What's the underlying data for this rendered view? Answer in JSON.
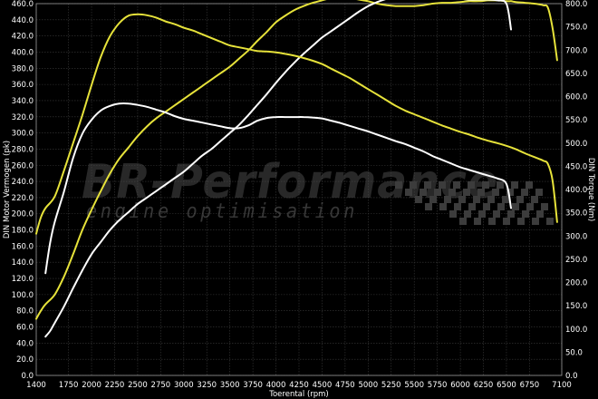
{
  "chart_data": {
    "type": "line",
    "title": "",
    "xlabel": "Toerental (rpm)",
    "ylabel_left": "DIN Motor Vermogen (pk)",
    "ylabel_right": "DIN Torque (Nm)",
    "xlim": [
      1400,
      7100
    ],
    "ylim_left": [
      0,
      460
    ],
    "ylim_right": [
      0,
      800
    ],
    "x_ticks": [
      1400,
      1750,
      2000,
      2250,
      2500,
      2750,
      3000,
      3250,
      3500,
      3750,
      4000,
      4250,
      4500,
      4750,
      5000,
      5250,
      5500,
      5750,
      6000,
      6250,
      6500,
      6750,
      7100
    ],
    "y_ticks_left": [
      "0.0",
      "20.0",
      "40.0",
      "60.0",
      "80.0",
      "100.0",
      "120.0",
      "140.0",
      "160.0",
      "180.0",
      "200.0",
      "220.0",
      "240.0",
      "260.0",
      "280.0",
      "300.0",
      "320.0",
      "340.0",
      "360.0",
      "380.0",
      "400.0",
      "420.0",
      "440.0",
      "460.0"
    ],
    "y_ticks_right": [
      "0.0",
      "50.0",
      "100.0",
      "150.0",
      "200.0",
      "250.0",
      "300.0",
      "350.0",
      "400.0",
      "450.0",
      "500.0",
      "550.0",
      "600.0",
      "650.0",
      "700.0",
      "750.0",
      "800.0"
    ],
    "grid": true,
    "watermark": {
      "brand": "BR-Performance",
      "tagline": "engine optimisation"
    },
    "series": [
      {
        "color": "#e6e23a",
        "axis": "left",
        "x": [
          1400,
          1450,
          1500,
          1600,
          1700,
          1800,
          1900,
          2000,
          2100,
          2200,
          2300,
          2400,
          2500,
          2600,
          2700,
          2800,
          2900,
          3000,
          3100,
          3200,
          3300,
          3400,
          3500,
          3600,
          3700,
          3800,
          3900,
          4000,
          4100,
          4200,
          4300,
          4400,
          4500,
          4600,
          4700,
          4800,
          4900,
          5000,
          5100,
          5200,
          5300,
          5400,
          5500,
          5600,
          5700,
          5800,
          5900,
          6000,
          6100,
          6200,
          6300,
          6400,
          6500,
          6550,
          6600,
          6700,
          6800,
          6900,
          6950,
          7000,
          7050
        ],
        "values": [
          70,
          80,
          88,
          100,
          122,
          150,
          180,
          205,
          228,
          250,
          268,
          282,
          296,
          308,
          318,
          326,
          334,
          342,
          350,
          358,
          366,
          374,
          382,
          392,
          402,
          414,
          425,
          437,
          445,
          452,
          457,
          461,
          464,
          467,
          468,
          467,
          465,
          463,
          460,
          458,
          457,
          457,
          457,
          458,
          460,
          461,
          461,
          462,
          463,
          463,
          464,
          464,
          463,
          463,
          462,
          461,
          460,
          458,
          455,
          430,
          390
        ]
      },
      {
        "color": "#ffffff",
        "axis": "left",
        "x": [
          1500,
          1550,
          1600,
          1700,
          1800,
          1900,
          2000,
          2100,
          2200,
          2300,
          2400,
          2500,
          2600,
          2700,
          2800,
          2900,
          3000,
          3100,
          3200,
          3300,
          3400,
          3500,
          3600,
          3700,
          3800,
          3900,
          4000,
          4100,
          4200,
          4300,
          4400,
          4500,
          4600,
          4700,
          4800,
          4900,
          5000,
          5100,
          5200,
          5300,
          5400,
          5500,
          5600,
          5700,
          5800,
          5900,
          6000,
          6100,
          6200,
          6300,
          6400,
          6500,
          6550
        ],
        "values": [
          48,
          55,
          65,
          85,
          108,
          130,
          150,
          165,
          180,
          192,
          202,
          212,
          220,
          228,
          236,
          244,
          252,
          262,
          272,
          280,
          290,
          300,
          310,
          322,
          335,
          348,
          362,
          375,
          387,
          398,
          408,
          418,
          426,
          434,
          442,
          450,
          457,
          462,
          466,
          469,
          471,
          472,
          471,
          470,
          468,
          467,
          466,
          465,
          465,
          465,
          464,
          460,
          428
        ]
      },
      {
        "color": "#e6e23a",
        "axis": "right",
        "x": [
          1400,
          1450,
          1500,
          1600,
          1700,
          1800,
          1900,
          2000,
          2100,
          2200,
          2300,
          2400,
          2500,
          2600,
          2700,
          2800,
          2900,
          3000,
          3100,
          3200,
          3300,
          3400,
          3500,
          3600,
          3700,
          3800,
          3900,
          4000,
          4100,
          4200,
          4300,
          4400,
          4500,
          4600,
          4700,
          4800,
          4900,
          5000,
          5100,
          5200,
          5300,
          5400,
          5500,
          5600,
          5700,
          5800,
          5900,
          6000,
          6100,
          6200,
          6300,
          6400,
          6500,
          6600,
          6700,
          6800,
          6900,
          6950,
          7000,
          7050
        ],
        "values": [
          305,
          340,
          360,
          385,
          440,
          500,
          560,
          625,
          685,
          730,
          758,
          774,
          777,
          775,
          770,
          762,
          756,
          748,
          742,
          734,
          726,
          718,
          710,
          706,
          702,
          698,
          697,
          695,
          692,
          688,
          683,
          677,
          670,
          660,
          650,
          640,
          628,
          616,
          604,
          592,
          580,
          570,
          562,
          554,
          546,
          538,
          531,
          524,
          518,
          511,
          505,
          500,
          494,
          487,
          478,
          470,
          462,
          455,
          420,
          330
        ]
      },
      {
        "color": "#ffffff",
        "axis": "right",
        "x": [
          1500,
          1550,
          1600,
          1700,
          1800,
          1900,
          2000,
          2100,
          2200,
          2300,
          2400,
          2500,
          2600,
          2700,
          2800,
          2900,
          3000,
          3100,
          3200,
          3300,
          3400,
          3500,
          3600,
          3700,
          3800,
          3900,
          4000,
          4100,
          4200,
          4300,
          4400,
          4500,
          4600,
          4700,
          4800,
          4900,
          5000,
          5100,
          5200,
          5300,
          5400,
          5500,
          5600,
          5700,
          5800,
          5900,
          6000,
          6100,
          6200,
          6300,
          6400,
          6500,
          6550
        ],
        "values": [
          220,
          285,
          330,
          395,
          468,
          520,
          550,
          570,
          580,
          585,
          585,
          582,
          578,
          572,
          566,
          558,
          552,
          548,
          544,
          540,
          536,
          532,
          532,
          538,
          548,
          554,
          556,
          556,
          556,
          556,
          555,
          553,
          548,
          543,
          537,
          531,
          525,
          518,
          511,
          504,
          498,
          490,
          482,
          472,
          464,
          456,
          448,
          442,
          436,
          430,
          424,
          412,
          360
        ]
      }
    ]
  }
}
